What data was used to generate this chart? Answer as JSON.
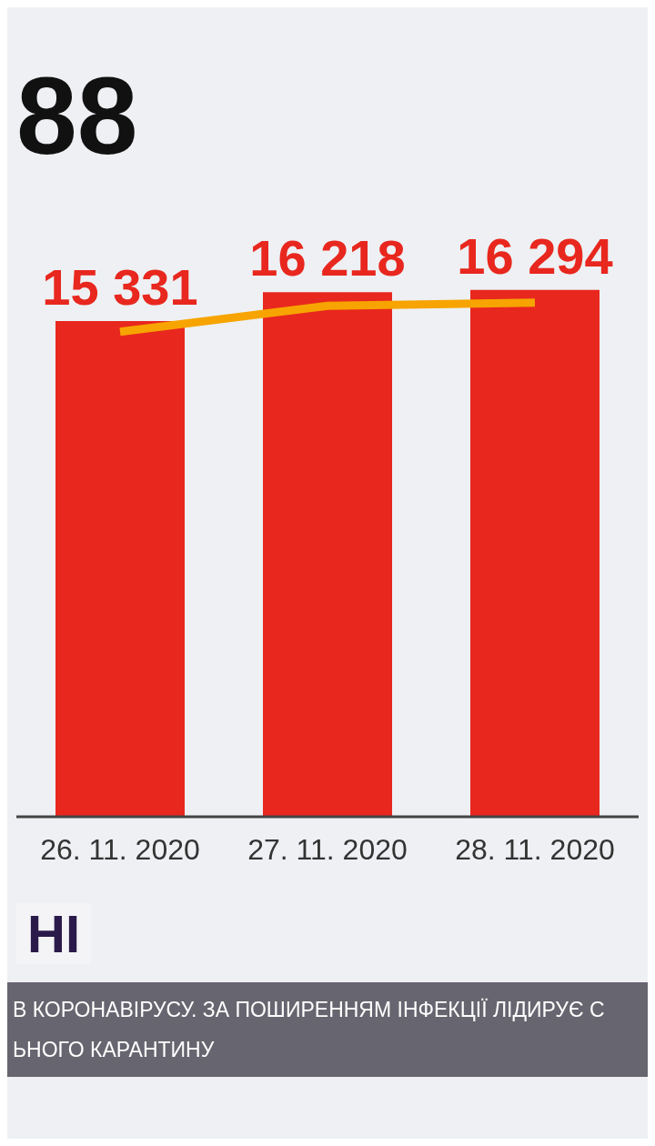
{
  "chart_data": {
    "type": "bar",
    "title": "88",
    "categories": [
      "26. 11. 2020",
      "27. 11. 2020",
      "28. 11. 2020"
    ],
    "series": [
      {
        "color": "#e8271e",
        "values": [
          15331,
          16218,
          16294
        ],
        "value_labels": [
          "15 331",
          "16 218",
          "16 294"
        ]
      },
      {
        "type": "line",
        "color": "#f7a400",
        "values": [
          15000,
          15800,
          15900
        ]
      }
    ],
    "grid": false,
    "legend": false,
    "marker": "none",
    "line_style": "solid",
    "annotations": [
      "НІ",
      "В КОРОНАВІРУСУ. ЗА ПОШИРЕННЯМ ІНФЕКЦІЇ ЛІДИРУЄ С",
      "ЬНОГО КАРАНТИНУ"
    ]
  }
}
